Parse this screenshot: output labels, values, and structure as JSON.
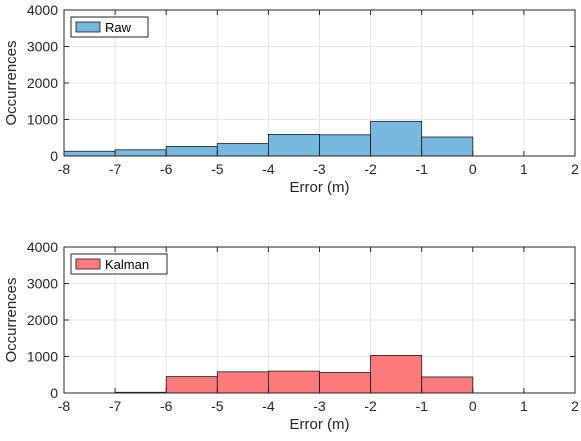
{
  "chart_data": [
    {
      "type": "bar",
      "title": "",
      "xlabel": "Error (m)",
      "ylabel": "Occurrences",
      "xlim": [
        -8,
        2
      ],
      "ylim": [
        0,
        4000
      ],
      "xticks": [
        -8,
        -7,
        -6,
        -5,
        -4,
        -3,
        -2,
        -1,
        0,
        1,
        2
      ],
      "yticks": [
        0,
        1000,
        2000,
        3000,
        4000
      ],
      "grid": true,
      "legend_position": "top-left",
      "bin_edges": [
        -8,
        -7,
        -6,
        -5,
        -4,
        -3,
        -2,
        -1,
        0,
        1,
        2
      ],
      "series": [
        {
          "name": "Raw",
          "values": [
            130,
            170,
            260,
            340,
            590,
            580,
            950,
            520,
            0,
            0
          ],
          "color": "#77b8de"
        }
      ]
    },
    {
      "type": "bar",
      "title": "",
      "xlabel": "Error (m)",
      "ylabel": "Occurrences",
      "xlim": [
        -8,
        2
      ],
      "ylim": [
        0,
        4000
      ],
      "xticks": [
        -8,
        -7,
        -6,
        -5,
        -4,
        -3,
        -2,
        -1,
        0,
        1,
        2
      ],
      "yticks": [
        0,
        1000,
        2000,
        3000,
        4000
      ],
      "grid": true,
      "legend_position": "top-left",
      "bin_edges": [
        -8,
        -7,
        -6,
        -5,
        -4,
        -3,
        -2,
        -1,
        0,
        1,
        2
      ],
      "series": [
        {
          "name": "Kalman",
          "values": [
            0,
            20,
            450,
            580,
            600,
            560,
            1030,
            440,
            0,
            0
          ],
          "color": "#ff7b7b"
        }
      ]
    }
  ]
}
